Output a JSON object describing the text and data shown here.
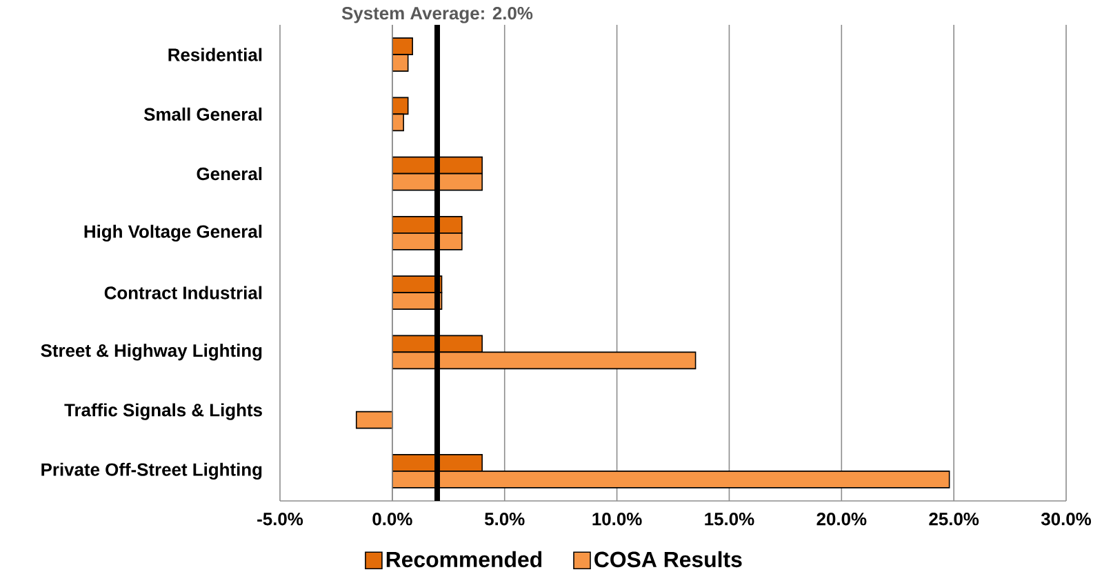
{
  "chart_data": {
    "type": "bar",
    "orientation": "horizontal",
    "categories": [
      "Residential",
      "Small General",
      "General",
      "High Voltage General",
      "Contract Industrial",
      "Street & Highway Lighting",
      "Traffic Signals & Lights",
      "Private Off-Street Lighting"
    ],
    "series": [
      {
        "name": "Recommended",
        "color": "#e36c09",
        "values": [
          0.9,
          0.7,
          4.0,
          3.1,
          2.2,
          4.0,
          null,
          4.0
        ]
      },
      {
        "name": "COSA Results",
        "color": "#f79646",
        "values": [
          0.7,
          0.5,
          4.0,
          3.1,
          2.2,
          13.5,
          -1.6,
          24.8
        ]
      }
    ],
    "xlim": [
      -5,
      30
    ],
    "xticks": [
      {
        "value": -5,
        "label": "-5.0%"
      },
      {
        "value": 0,
        "label": "0.0%"
      },
      {
        "value": 5,
        "label": "5.0%"
      },
      {
        "value": 10,
        "label": "10.0%"
      },
      {
        "value": 15,
        "label": "15.0%"
      },
      {
        "value": 20,
        "label": "20.0%"
      },
      {
        "value": 25,
        "label": "25.0%"
      },
      {
        "value": 30,
        "label": "30.0%"
      }
    ],
    "ref_lines": [
      {
        "axis": "x",
        "value": 2.0,
        "label": "System Average: 2.0%",
        "color": "#000000"
      }
    ],
    "grid": "x",
    "legend": "bottom"
  }
}
